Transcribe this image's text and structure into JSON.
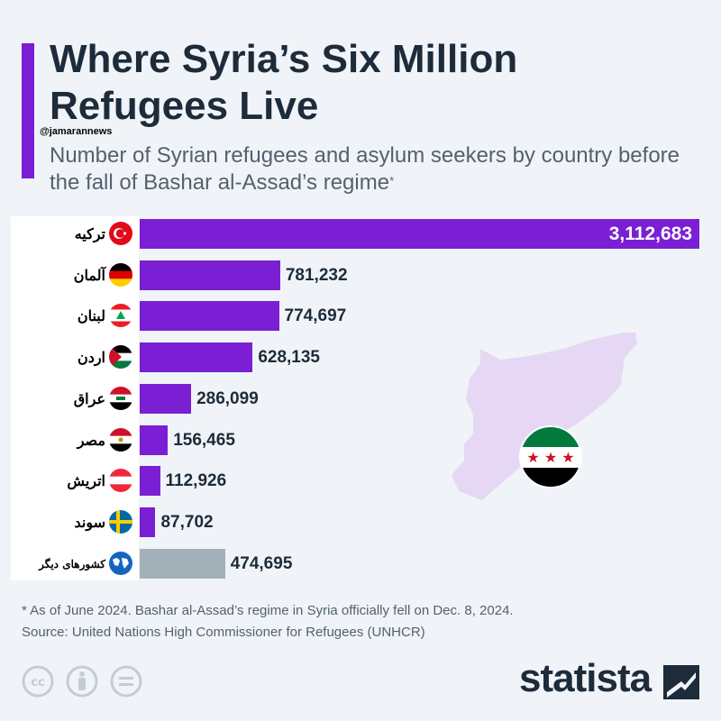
{
  "header": {
    "title": "Where Syria’s Six Million Refugees Live",
    "subtitle": "Number of Syrian refugees and asylum seekers by country before the fall of Bashar al-Assad’s regime",
    "subtitle_footnote_mark": "*",
    "watermark": "@jamarannews"
  },
  "chart_data": {
    "type": "bar",
    "orientation": "horizontal",
    "categories": [
      "ترکیه",
      "آلمان",
      "لبنان",
      "اردن",
      "عراق",
      "مصر",
      "اتریش",
      "سوند",
      "کشورهای دیگر"
    ],
    "values": [
      3112683,
      781232,
      774697,
      628135,
      286099,
      156465,
      112926,
      87702,
      474695
    ],
    "value_labels": [
      "3,112,683",
      "781,232",
      "774,697",
      "628,135",
      "286,099",
      "156,465",
      "112,926",
      "87,702",
      "474,695"
    ],
    "flags": [
      "turkey-flag",
      "germany-flag",
      "lebanon-flag",
      "jordan-flag",
      "iraq-flag",
      "egypt-flag",
      "austria-flag",
      "sweden-flag",
      "globe-icon"
    ],
    "bar_colors": [
      "#7a1fd3",
      "#7a1fd3",
      "#7a1fd3",
      "#7a1fd3",
      "#7a1fd3",
      "#7a1fd3",
      "#7a1fd3",
      "#7a1fd3",
      "#a4b0b8"
    ],
    "xlim": [
      0,
      3112683
    ],
    "grid": false,
    "legend": "none"
  },
  "colors": {
    "accent": "#7a1fd3",
    "other_bar": "#a4b0b8",
    "title_text": "#1d2b3a",
    "background": "#f0f4f8",
    "map_fill": "#e6d8f5"
  },
  "footer": {
    "note": "* As of June 2024. Bashar al-Assad’s regime in Syria officially fell on Dec. 8, 2024.",
    "source": "Source: United Nations High Commissioner for Refugees (UNHCR)",
    "brand": "statista",
    "license_icons": [
      "cc-icon",
      "attribution-icon",
      "no-derivatives-icon"
    ]
  }
}
